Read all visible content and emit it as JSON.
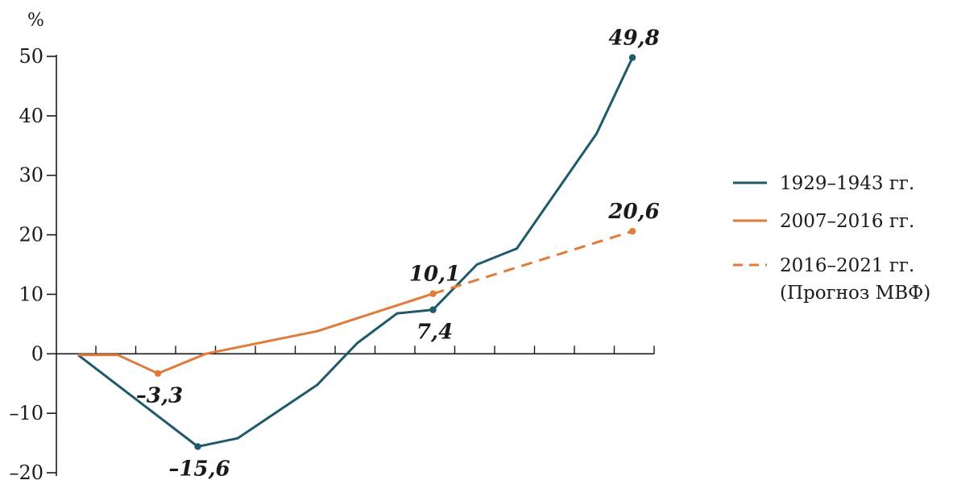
{
  "chart_data": {
    "type": "line",
    "title": "",
    "xlabel": "",
    "ylabel": "%",
    "ylim": [
      -20,
      50
    ],
    "yticks": [
      50,
      40,
      30,
      20,
      10,
      0,
      -10,
      -20
    ],
    "ytick_labels": [
      "50",
      "40",
      "30",
      "20",
      "10",
      "0",
      "–10",
      "–20"
    ],
    "x": [
      0,
      1,
      2,
      3,
      4,
      5,
      6,
      7,
      8,
      9,
      10,
      11,
      12,
      13,
      14
    ],
    "grid": false,
    "legend_position": "right",
    "series": [
      {
        "name": "1929–1943 гг.",
        "color": "#1e5a6b",
        "style": "solid",
        "x": [
          0,
          3,
          4,
          6,
          7,
          8,
          8.9,
          10,
          11,
          13,
          13.9
        ],
        "values": [
          -0.2,
          -15.6,
          -14.2,
          -5.2,
          1.8,
          6.8,
          7.4,
          15.0,
          17.7,
          37.0,
          49.8
        ]
      },
      {
        "name": "2007–2016 гг.",
        "color": "#e07b39",
        "style": "solid",
        "x": [
          0,
          1,
          2,
          3.2,
          6,
          8.9
        ],
        "values": [
          -0.2,
          -0.2,
          -3.3,
          0.0,
          3.8,
          10.1
        ]
      },
      {
        "name": "2016–2021 гг. (Прогноз МВФ)",
        "color": "#e07b39",
        "style": "dashed",
        "x": [
          8.9,
          13.9
        ],
        "values": [
          10.1,
          20.6
        ]
      }
    ],
    "annotations": [
      {
        "text": "49,8",
        "series": 0,
        "x": 13.9,
        "y": 49.8,
        "pos": "above",
        "marker": true
      },
      {
        "text": "7,4",
        "series": 0,
        "x": 8.9,
        "y": 7.4,
        "pos": "below",
        "marker": true
      },
      {
        "text": "–15,6",
        "series": 0,
        "x": 3,
        "y": -15.6,
        "pos": "below",
        "marker": true
      },
      {
        "text": "–3,3",
        "series": 1,
        "x": 2,
        "y": -3.3,
        "pos": "below",
        "marker": true
      },
      {
        "text": "10,1",
        "series": 1,
        "x": 8.9,
        "y": 10.1,
        "pos": "above",
        "marker": true
      },
      {
        "text": "20,6",
        "series": 2,
        "x": 13.9,
        "y": 20.6,
        "pos": "above",
        "marker": true
      }
    ],
    "legend": [
      {
        "lines": [
          "1929–1943 гг."
        ],
        "color": "#1e5a6b",
        "style": "solid"
      },
      {
        "lines": [
          "2007–2016 гг."
        ],
        "color": "#e07b39",
        "style": "solid"
      },
      {
        "lines": [
          "2016–2021 гг.",
          "(Прогноз МВФ)"
        ],
        "color": "#e07b39",
        "style": "dashed"
      }
    ]
  }
}
